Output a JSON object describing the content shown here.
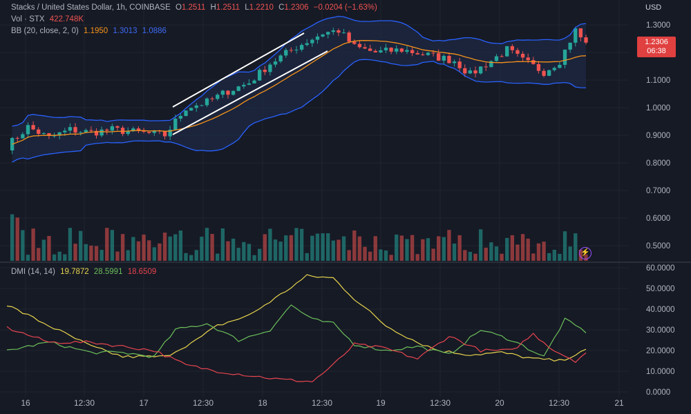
{
  "header": {
    "symbol": "Stacks / United States Dollar, 1h, COINBASE",
    "o_label": "O",
    "o": "1.2511",
    "h_label": "H",
    "h": "1.2511",
    "l_label": "L",
    "l": "1.2210",
    "c_label": "C",
    "c": "1.2306",
    "change": "−0.0204 (−1.63%)",
    "vol_label": "Vol · STX",
    "vol": "422.748K",
    "bb_label": "BB (20, close, 2, 0)",
    "bb_basis": "1.1950",
    "bb_upper": "1.3013",
    "bb_lower": "1.0886"
  },
  "dmi": {
    "label": "DMI (14, 14)",
    "adx": "19.7872",
    "plus_di": "28.5991",
    "minus_di": "18.6509"
  },
  "price_tag": {
    "price": "1.2306",
    "countdown": "06:38"
  },
  "currency": "USD",
  "colors": {
    "up": "#26a69a",
    "down": "#ef5350",
    "basis": "#f7931a",
    "bands": "#2962ff",
    "adx": "#e8d44d",
    "plus_di": "#6cbf5a",
    "minus_di": "#e8454f",
    "channel": "#ffffff"
  },
  "chart_data": [
    {
      "type": "candlestick",
      "title": "Stacks / United States Dollar, 1h, COINBASE",
      "ylabel": "USD",
      "ylim": [
        0.45,
        1.35
      ],
      "y_ticks": [
        "1.3000",
        "1.2000",
        "1.1000",
        "1.0000",
        "0.9000",
        "0.8000",
        "0.7000",
        "0.6000",
        "0.5000"
      ],
      "x_ticks": [
        "16",
        "12:30",
        "17",
        "12:30",
        "18",
        "12:30",
        "19",
        "12:30",
        "20",
        "12:30",
        "21"
      ],
      "approx_close_path": [
        [
          0,
          0.86
        ],
        [
          4,
          0.93
        ],
        [
          8,
          0.89
        ],
        [
          12,
          0.92
        ],
        [
          16,
          0.91
        ],
        [
          20,
          0.92
        ],
        [
          25,
          0.91
        ],
        [
          30,
          0.9
        ],
        [
          34,
          1.0
        ],
        [
          38,
          1.02
        ],
        [
          42,
          1.06
        ],
        [
          46,
          1.09
        ],
        [
          50,
          1.16
        ],
        [
          55,
          1.22
        ],
        [
          60,
          1.27
        ],
        [
          63,
          1.28
        ],
        [
          66,
          1.22
        ],
        [
          70,
          1.2
        ],
        [
          75,
          1.21
        ],
        [
          80,
          1.19
        ],
        [
          85,
          1.17
        ],
        [
          88,
          1.12
        ],
        [
          92,
          1.17
        ],
        [
          95,
          1.21
        ],
        [
          98,
          1.17
        ],
        [
          102,
          1.13
        ],
        [
          105,
          1.17
        ],
        [
          108,
          1.28
        ],
        [
          110,
          1.23
        ]
      ]
    },
    {
      "type": "bar",
      "title": "Vol · STX",
      "last_value": "422.748K"
    },
    {
      "type": "line",
      "title": "DMI (14, 14)",
      "ylim": [
        0,
        60
      ],
      "y_ticks": [
        "60.0000",
        "50.0000",
        "40.0000",
        "30.0000",
        "20.0000",
        "10.0000",
        "0.0000"
      ],
      "series": [
        {
          "name": "ADX",
          "points": [
            [
              0,
              42
            ],
            [
              8,
              32
            ],
            [
              16,
              22
            ],
            [
              22,
              17
            ],
            [
              30,
              17
            ],
            [
              36,
              25
            ],
            [
              40,
              32
            ],
            [
              46,
              37
            ],
            [
              52,
              47
            ],
            [
              57,
              56
            ],
            [
              62,
              55
            ],
            [
              66,
              45
            ],
            [
              72,
              32
            ],
            [
              78,
              24
            ],
            [
              82,
              20
            ],
            [
              88,
              18
            ],
            [
              94,
              19
            ],
            [
              100,
              16
            ],
            [
              105,
              15
            ],
            [
              110,
              20
            ]
          ]
        },
        {
          "name": "+DI",
          "points": [
            [
              0,
              20
            ],
            [
              8,
              24
            ],
            [
              16,
              19
            ],
            [
              22,
              19
            ],
            [
              28,
              17
            ],
            [
              32,
              30
            ],
            [
              38,
              33
            ],
            [
              44,
              25
            ],
            [
              50,
              30
            ],
            [
              54,
              42
            ],
            [
              58,
              35
            ],
            [
              62,
              33
            ],
            [
              66,
              23
            ],
            [
              72,
              20
            ],
            [
              78,
              22
            ],
            [
              84,
              18
            ],
            [
              90,
              30
            ],
            [
              96,
              25
            ],
            [
              102,
              17
            ],
            [
              106,
              35
            ],
            [
              110,
              29
            ]
          ]
        },
        {
          "name": "−DI",
          "points": [
            [
              0,
              31
            ],
            [
              8,
              24
            ],
            [
              16,
              24
            ],
            [
              22,
              22
            ],
            [
              28,
              20
            ],
            [
              34,
              13
            ],
            [
              40,
              10
            ],
            [
              46,
              8
            ],
            [
              52,
              6
            ],
            [
              58,
              5
            ],
            [
              62,
              13
            ],
            [
              66,
              23
            ],
            [
              72,
              21
            ],
            [
              78,
              16
            ],
            [
              84,
              27
            ],
            [
              90,
              20
            ],
            [
              96,
              20
            ],
            [
              100,
              28
            ],
            [
              104,
              20
            ],
            [
              108,
              15
            ],
            [
              110,
              19
            ]
          ]
        }
      ]
    }
  ]
}
